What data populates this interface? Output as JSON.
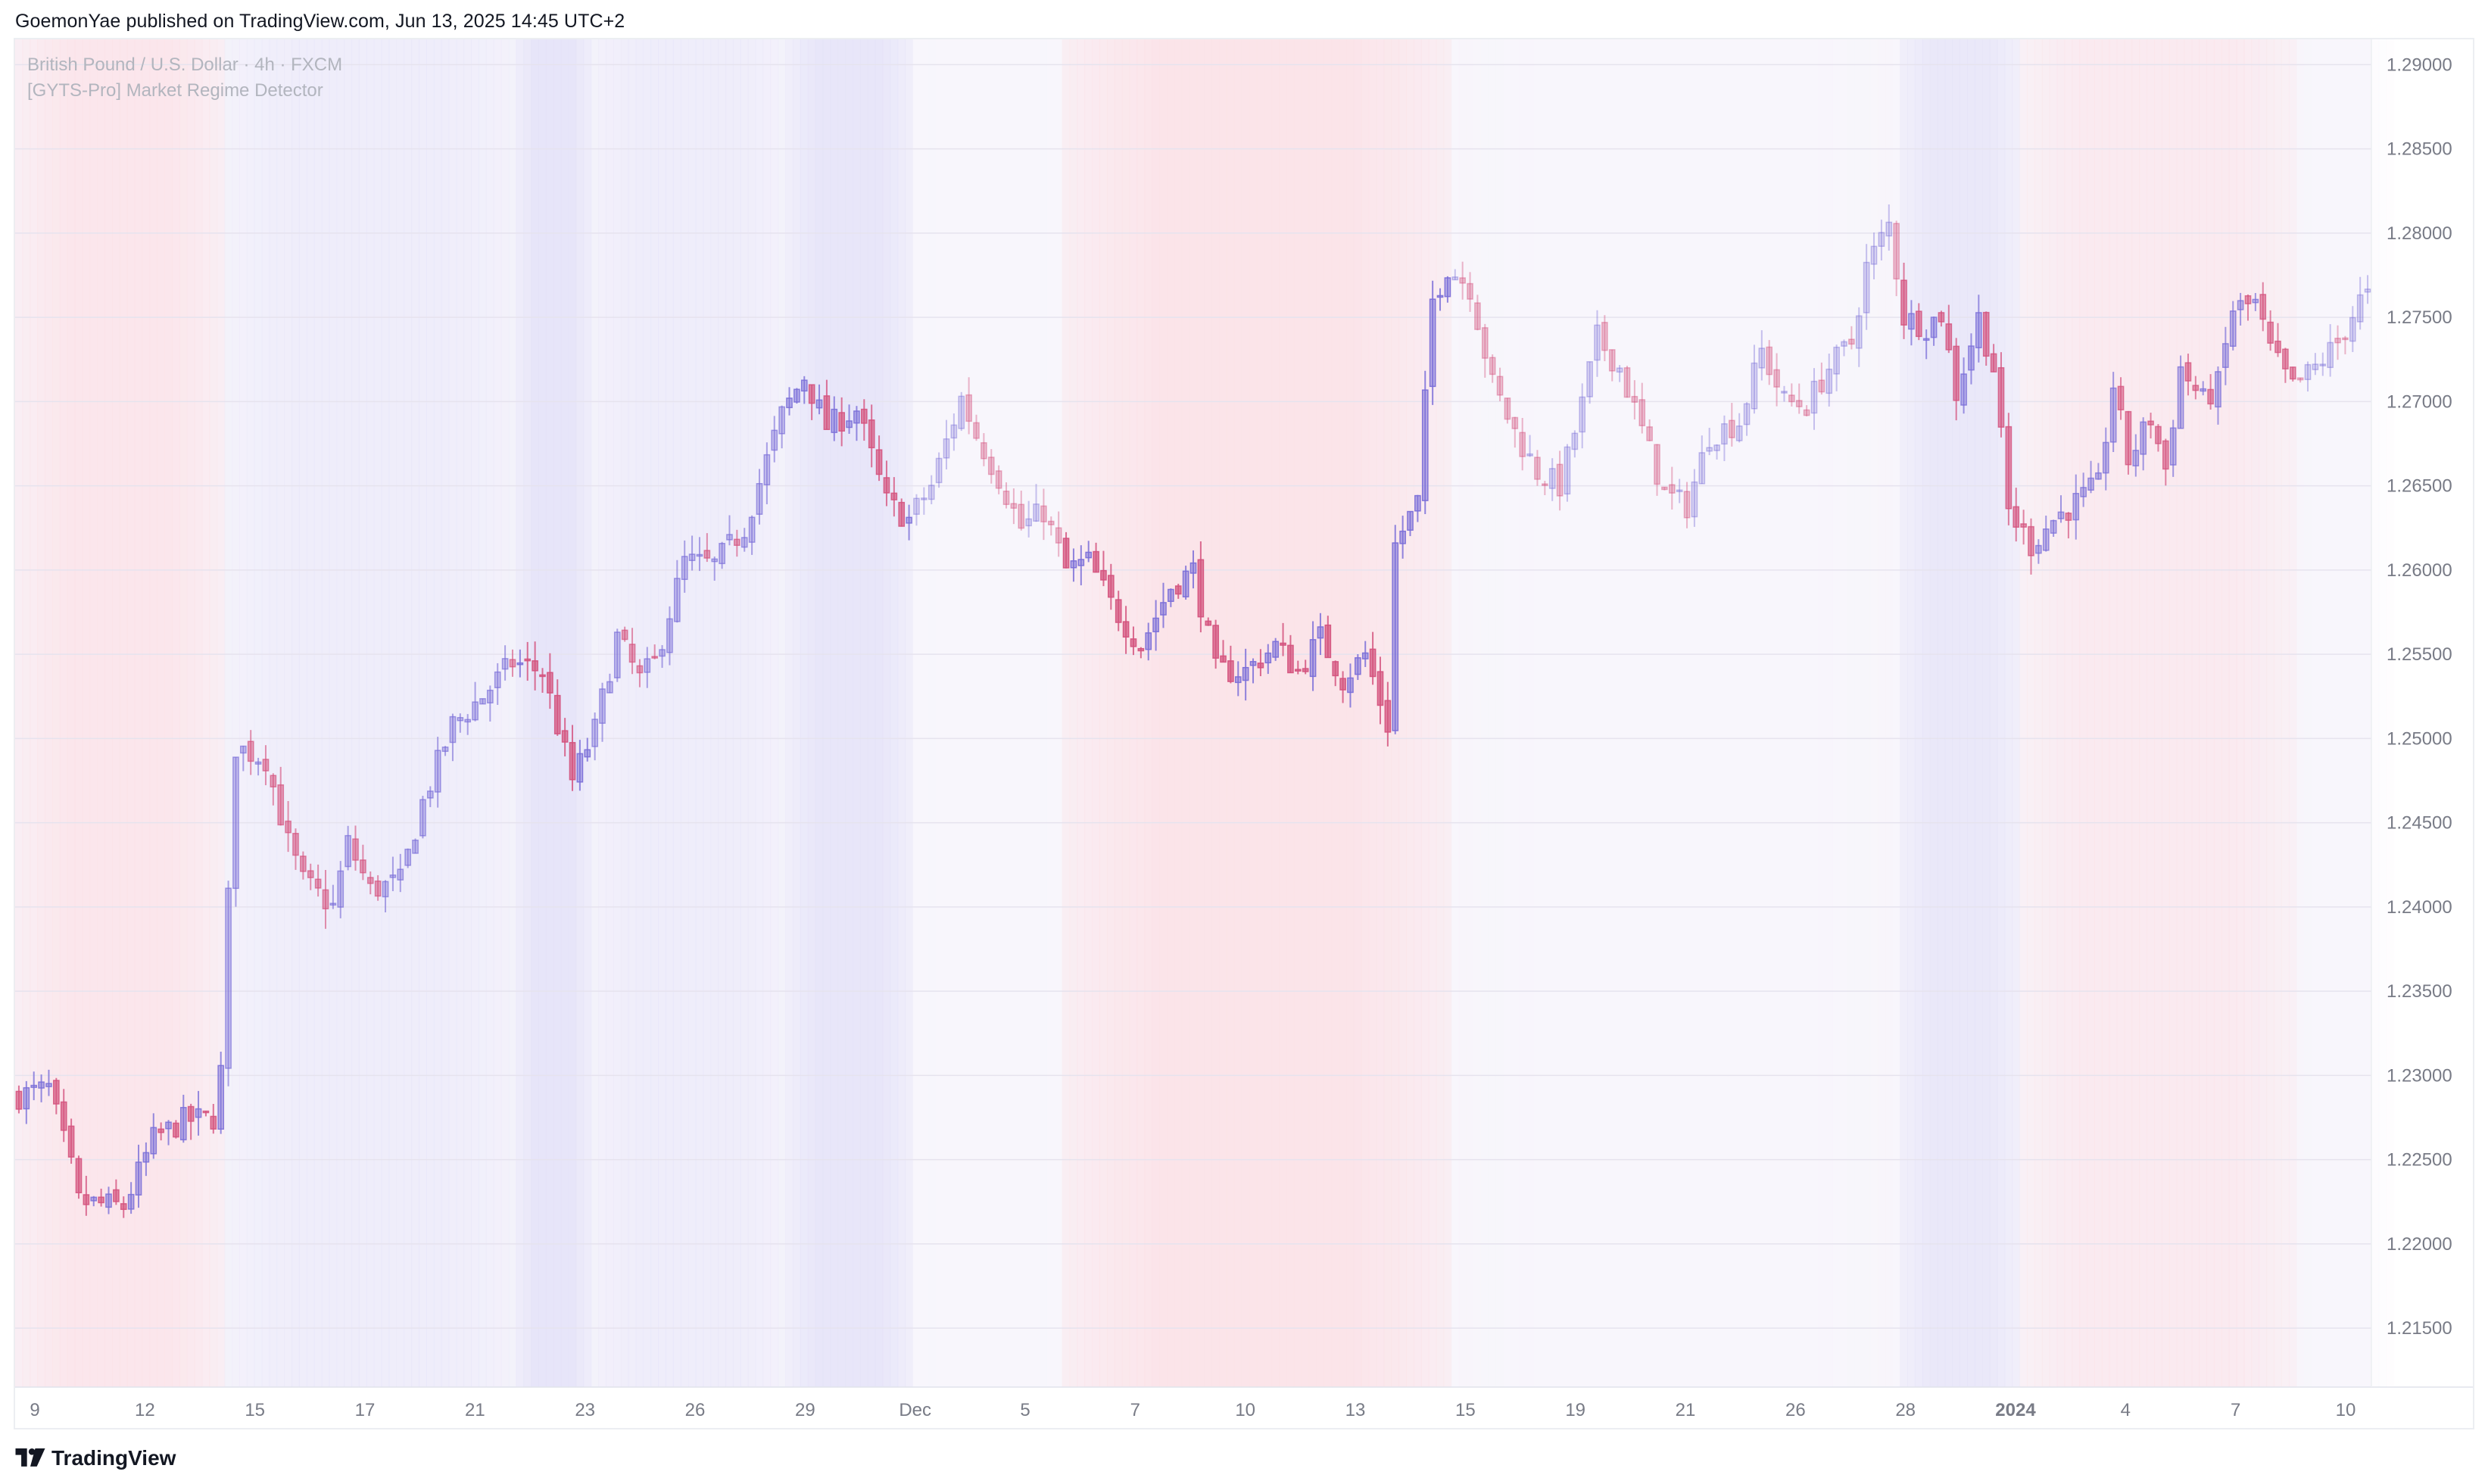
{
  "header": {
    "published_line": "GoemonYae published on TradingView.com, Jun 13, 2025 14:45 UTC+2"
  },
  "footer": {
    "brand": "TradingView",
    "logo_icon": "tradingview-logo-icon"
  },
  "chart_data": {
    "type": "candlestick",
    "title": "British Pound / U.S. Dollar · 4h · FXCM",
    "subtitle": "[GYTS-Pro] Market Regime Detector",
    "y_axis": {
      "position": "right",
      "range": [
        1.2115,
        1.2915
      ],
      "ticks": [
        "1.29000",
        "1.28500",
        "1.28000",
        "1.27500",
        "1.27000",
        "1.26500",
        "1.26000",
        "1.25500",
        "1.25000",
        "1.24500",
        "1.24000",
        "1.23500",
        "1.23000",
        "1.22500",
        "1.22000",
        "1.21500"
      ]
    },
    "x_axis": {
      "ticks": [
        "9",
        "12",
        "15",
        "17",
        "21",
        "23",
        "26",
        "29",
        "Dec",
        "5",
        "7",
        "10",
        "13",
        "15",
        "19",
        "21",
        "26",
        "28",
        "2024",
        "4",
        "7",
        "10"
      ],
      "bold_ticks": [
        "2024"
      ]
    },
    "grid": true,
    "colors": {
      "bullish": "#7b6fd8",
      "bearish": "#d4537e",
      "bull_regime_bg": "#e4e2f8",
      "bear_regime_bg": "#fbe2e7",
      "neutral_bg": "#f8f6fc",
      "axis_text": "#787b86",
      "gridline": "#e6e3ee"
    },
    "regimes": [
      {
        "from": 0,
        "to": 28,
        "regime": "bearish",
        "strength": 0.8
      },
      {
        "from": 28,
        "to": 67,
        "regime": "bullish",
        "strength": 0.45
      },
      {
        "from": 67,
        "to": 77,
        "regime": "bullish",
        "strength": 0.85
      },
      {
        "from": 77,
        "to": 103,
        "regime": "bullish",
        "strength": 0.45
      },
      {
        "from": 103,
        "to": 120,
        "regime": "bullish",
        "strength": 0.8
      },
      {
        "from": 120,
        "to": 140,
        "regime": "neutral",
        "strength": 0.5
      },
      {
        "from": 140,
        "to": 192,
        "regime": "bearish",
        "strength": 0.9
      },
      {
        "from": 192,
        "to": 252,
        "regime": "neutral",
        "strength": 0.35
      },
      {
        "from": 252,
        "to": 268,
        "regime": "bullish",
        "strength": 0.7
      },
      {
        "from": 268,
        "to": 305,
        "regime": "bearish",
        "strength": 0.6
      },
      {
        "from": 305,
        "to": 318,
        "regime": "neutral",
        "strength": 0.35
      }
    ],
    "close_path": [
      [
        0,
        1.2288
      ],
      [
        4,
        1.2292
      ],
      [
        7,
        1.2245
      ],
      [
        8,
        1.2225
      ],
      [
        14,
        1.2222
      ],
      [
        18,
        1.2262
      ],
      [
        22,
        1.2273
      ],
      [
        26,
        1.2275
      ],
      [
        27,
        1.2302
      ],
      [
        28,
        1.2405
      ],
      [
        29,
        1.2495
      ],
      [
        33,
        1.2488
      ],
      [
        36,
        1.2438
      ],
      [
        38,
        1.2415
      ],
      [
        42,
        1.24
      ],
      [
        44,
        1.2438
      ],
      [
        47,
        1.241
      ],
      [
        51,
        1.2415
      ],
      [
        54,
        1.2462
      ],
      [
        58,
        1.2508
      ],
      [
        62,
        1.2525
      ],
      [
        66,
        1.2545
      ],
      [
        70,
        1.254
      ],
      [
        74,
        1.2475
      ],
      [
        77,
        1.2505
      ],
      [
        80,
        1.256
      ],
      [
        83,
        1.2535
      ],
      [
        85,
        1.2545
      ],
      [
        89,
        1.2605
      ],
      [
        93,
        1.2603
      ],
      [
        97,
        1.2625
      ],
      [
        102,
        1.2692
      ],
      [
        105,
        1.2715
      ],
      [
        108,
        1.2685
      ],
      [
        112,
        1.2695
      ],
      [
        116,
        1.264
      ],
      [
        119,
        1.263
      ],
      [
        122,
        1.265
      ],
      [
        126,
        1.2702
      ],
      [
        128,
        1.268
      ],
      [
        131,
        1.2655
      ],
      [
        134,
        1.2625
      ],
      [
        137,
        1.2635
      ],
      [
        140,
        1.26
      ],
      [
        143,
        1.2605
      ],
      [
        146,
        1.258
      ],
      [
        150,
        1.2555
      ],
      [
        154,
        1.259
      ],
      [
        157,
        1.26
      ],
      [
        160,
        1.254
      ],
      [
        164,
        1.254
      ],
      [
        168,
        1.2555
      ],
      [
        171,
        1.254
      ],
      [
        174,
        1.256
      ],
      [
        177,
        1.2535
      ],
      [
        180,
        1.255
      ],
      [
        183,
        1.2508
      ],
      [
        184,
        1.2615
      ],
      [
        187,
        1.264
      ],
      [
        189,
        1.276
      ],
      [
        191,
        1.278
      ],
      [
        194,
        1.2768
      ],
      [
        197,
        1.271
      ],
      [
        200,
        1.2682
      ],
      [
        203,
        1.2658
      ],
      [
        206,
        1.265
      ],
      [
        209,
        1.2698
      ],
      [
        211,
        1.2738
      ],
      [
        214,
        1.272
      ],
      [
        217,
        1.2683
      ],
      [
        220,
        1.2645
      ],
      [
        223,
        1.2638
      ],
      [
        226,
        1.268
      ],
      [
        230,
        1.2688
      ],
      [
        233,
        1.273
      ],
      [
        236,
        1.27
      ],
      [
        239,
        1.2698
      ],
      [
        242,
        1.272
      ],
      [
        245,
        1.2735
      ],
      [
        247,
        1.278
      ],
      [
        250,
        1.2805
      ],
      [
        252,
        1.275
      ],
      [
        255,
        1.2745
      ],
      [
        257,
        1.2752
      ],
      [
        259,
        1.2705
      ],
      [
        262,
        1.275
      ],
      [
        264,
        1.272
      ],
      [
        266,
        1.2635
      ],
      [
        269,
        1.2615
      ],
      [
        272,
        1.263
      ],
      [
        275,
        1.264
      ],
      [
        278,
        1.265
      ],
      [
        280,
        1.271
      ],
      [
        282,
        1.2665
      ],
      [
        285,
        1.269
      ],
      [
        287,
        1.266
      ],
      [
        289,
        1.272
      ],
      [
        292,
        1.27
      ],
      [
        294,
        1.271
      ],
      [
        296,
        1.2755
      ],
      [
        299,
        1.2758
      ],
      [
        301,
        1.273
      ],
      [
        304,
        1.2708
      ],
      [
        307,
        1.272
      ],
      [
        310,
        1.2735
      ],
      [
        313,
        1.276
      ],
      [
        314,
        1.2762
      ]
    ],
    "candle_count": 315
  }
}
